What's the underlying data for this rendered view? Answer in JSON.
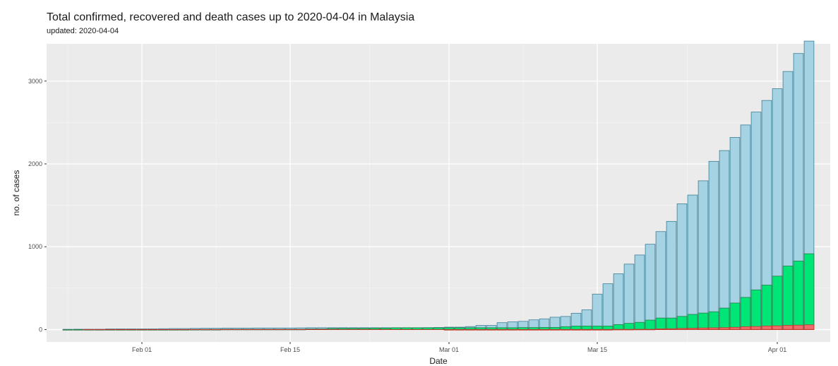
{
  "chart_data": {
    "type": "bar",
    "title": "Total confirmed, recovered and death cases up to 2020-04-04 in Malaysia",
    "subtitle": "updated: 2020-04-04",
    "xlabel": "Date",
    "ylabel": "no. of cases",
    "ylim": [
      -150,
      3450
    ],
    "yticks": [
      0,
      1000,
      2000,
      3000
    ],
    "xticks": [
      {
        "date": "2020-02-01",
        "label": "Feb 01"
      },
      {
        "date": "2020-02-15",
        "label": "Feb 15"
      },
      {
        "date": "2020-03-01",
        "label": "Mar 01"
      },
      {
        "date": "2020-03-15",
        "label": "Mar 15"
      },
      {
        "date": "2020-04-01",
        "label": "Apr 01"
      }
    ],
    "x": [
      "2020-03-01",
      "2020-03-02",
      "2020-03-03",
      "2020-03-04",
      "2020-03-05",
      "2020-03-06",
      "2020-03-07",
      "2020-03-08",
      "2020-03-09",
      "2020-03-10",
      "2020-03-11",
      "2020-03-12",
      "2020-03-13",
      "2020-03-14",
      "2020-03-15",
      "2020-03-16",
      "2020-03-17",
      "2020-03-18",
      "2020-03-19",
      "2020-03-20",
      "2020-03-21",
      "2020-03-22",
      "2020-03-23",
      "2020-03-24",
      "2020-03-25",
      "2020-03-26",
      "2020-03-27",
      "2020-03-28",
      "2020-03-29",
      "2020-03-30",
      "2020-03-31",
      "2020-04-01",
      "2020-04-02",
      "2020-04-03",
      "2020-04-04"
    ],
    "series": [
      {
        "name": "Confirmed",
        "color": "#a6d3e3",
        "stroke": "#3c7f96",
        "values": [
          29,
          29,
          36,
          50,
          50,
          83,
          93,
          99,
          117,
          129,
          149,
          158,
          197,
          238,
          428,
          553,
          673,
          790,
          900,
          1030,
          1183,
          1306,
          1518,
          1624,
          1796,
          2031,
          2161,
          2320,
          2470,
          2626,
          2766,
          2908,
          3116,
          3333,
          3483
        ]
      },
      {
        "name": "Recovered",
        "color": "#00e676",
        "stroke": "#2a7a4a",
        "values": [
          22,
          22,
          22,
          22,
          22,
          22,
          22,
          24,
          24,
          26,
          26,
          35,
          42,
          42,
          42,
          42,
          60,
          75,
          87,
          114,
          139,
          139,
          159,
          183,
          199,
          215,
          259,
          320,
          388,
          479,
          537,
          645,
          767,
          827,
          915
        ]
      },
      {
        "name": "Deaths",
        "color": "#f06b6b",
        "stroke": "#c0392b",
        "values": [
          0,
          0,
          0,
          0,
          0,
          0,
          0,
          0,
          0,
          0,
          0,
          0,
          0,
          0,
          0,
          0,
          2,
          2,
          3,
          3,
          8,
          10,
          14,
          16,
          19,
          21,
          23,
          27,
          34,
          37,
          43,
          45,
          50,
          53,
          57
        ]
      }
    ],
    "early_series": {
      "x_start": "2020-01-25",
      "x_end": "2020-02-29",
      "confirmed_values": [
        3,
        4,
        4,
        4,
        7,
        8,
        8,
        8,
        8,
        10,
        12,
        12,
        14,
        16,
        16,
        18,
        18,
        18,
        19,
        19,
        19,
        19,
        20,
        22,
        22,
        22,
        22,
        22,
        22,
        22,
        22,
        22,
        22,
        22,
        23,
        25
      ],
      "recovered_values": [
        0,
        0,
        0,
        0,
        0,
        0,
        0,
        0,
        0,
        0,
        0,
        0,
        1,
        1,
        1,
        3,
        3,
        3,
        3,
        3,
        3,
        3,
        3,
        7,
        7,
        13,
        15,
        15,
        15,
        18,
        18,
        22,
        22,
        22,
        22,
        22
      ]
    },
    "grid": true,
    "legend": "none",
    "colors": {
      "panel": "#ebebeb",
      "grid_major": "#ffffff",
      "grid_minor": "#f4f4f4"
    }
  }
}
